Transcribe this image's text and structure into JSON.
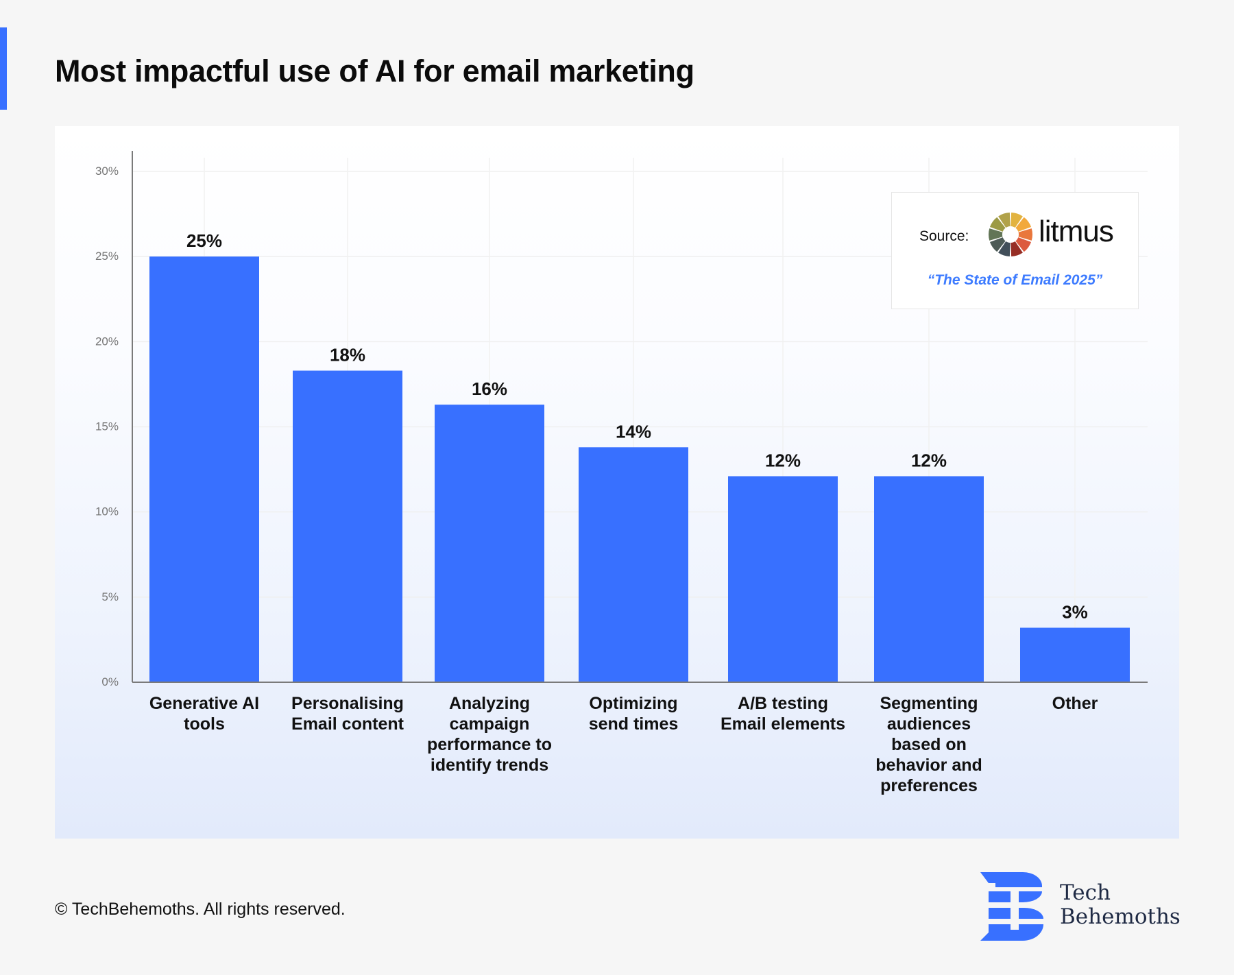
{
  "title": "Most impactful use of AI for email marketing",
  "source": {
    "label": "Source:",
    "brand": "litmus",
    "report": "“The State of Email 2025”"
  },
  "footer": {
    "copyright": "© TechBehemoths. All rights reserved.",
    "logo_line1": "Tech",
    "logo_line2": "Behemoths"
  },
  "colors": {
    "bar": "#3870ff",
    "accent": "#3870ff",
    "report": "#3d7bff"
  },
  "chart_data": {
    "type": "bar",
    "title": "Most impactful use of AI for email marketing",
    "categories": [
      [
        "Generative AI",
        "tools"
      ],
      [
        "Personalising",
        "Email content"
      ],
      [
        "Analyzing",
        "campaign",
        "performance to",
        "identify trends"
      ],
      [
        "Optimizing",
        "send times"
      ],
      [
        "A/B testing",
        "Email elements"
      ],
      [
        "Segmenting",
        "audiences",
        "based on",
        "behavior and",
        "preferences"
      ],
      [
        "Other"
      ]
    ],
    "values": [
      25.0,
      18.3,
      16.3,
      13.8,
      12.1,
      12.1,
      3.2
    ],
    "data_labels": [
      "25%",
      "18%",
      "16%",
      "14%",
      "12%",
      "12%",
      "3%"
    ],
    "yticks": [
      "0%",
      "5%",
      "10%",
      "15%",
      "20%",
      "25%",
      "30%"
    ],
    "ylim": [
      0,
      30
    ],
    "xlabel": "",
    "ylabel": "",
    "grid": true,
    "legend": "none"
  }
}
